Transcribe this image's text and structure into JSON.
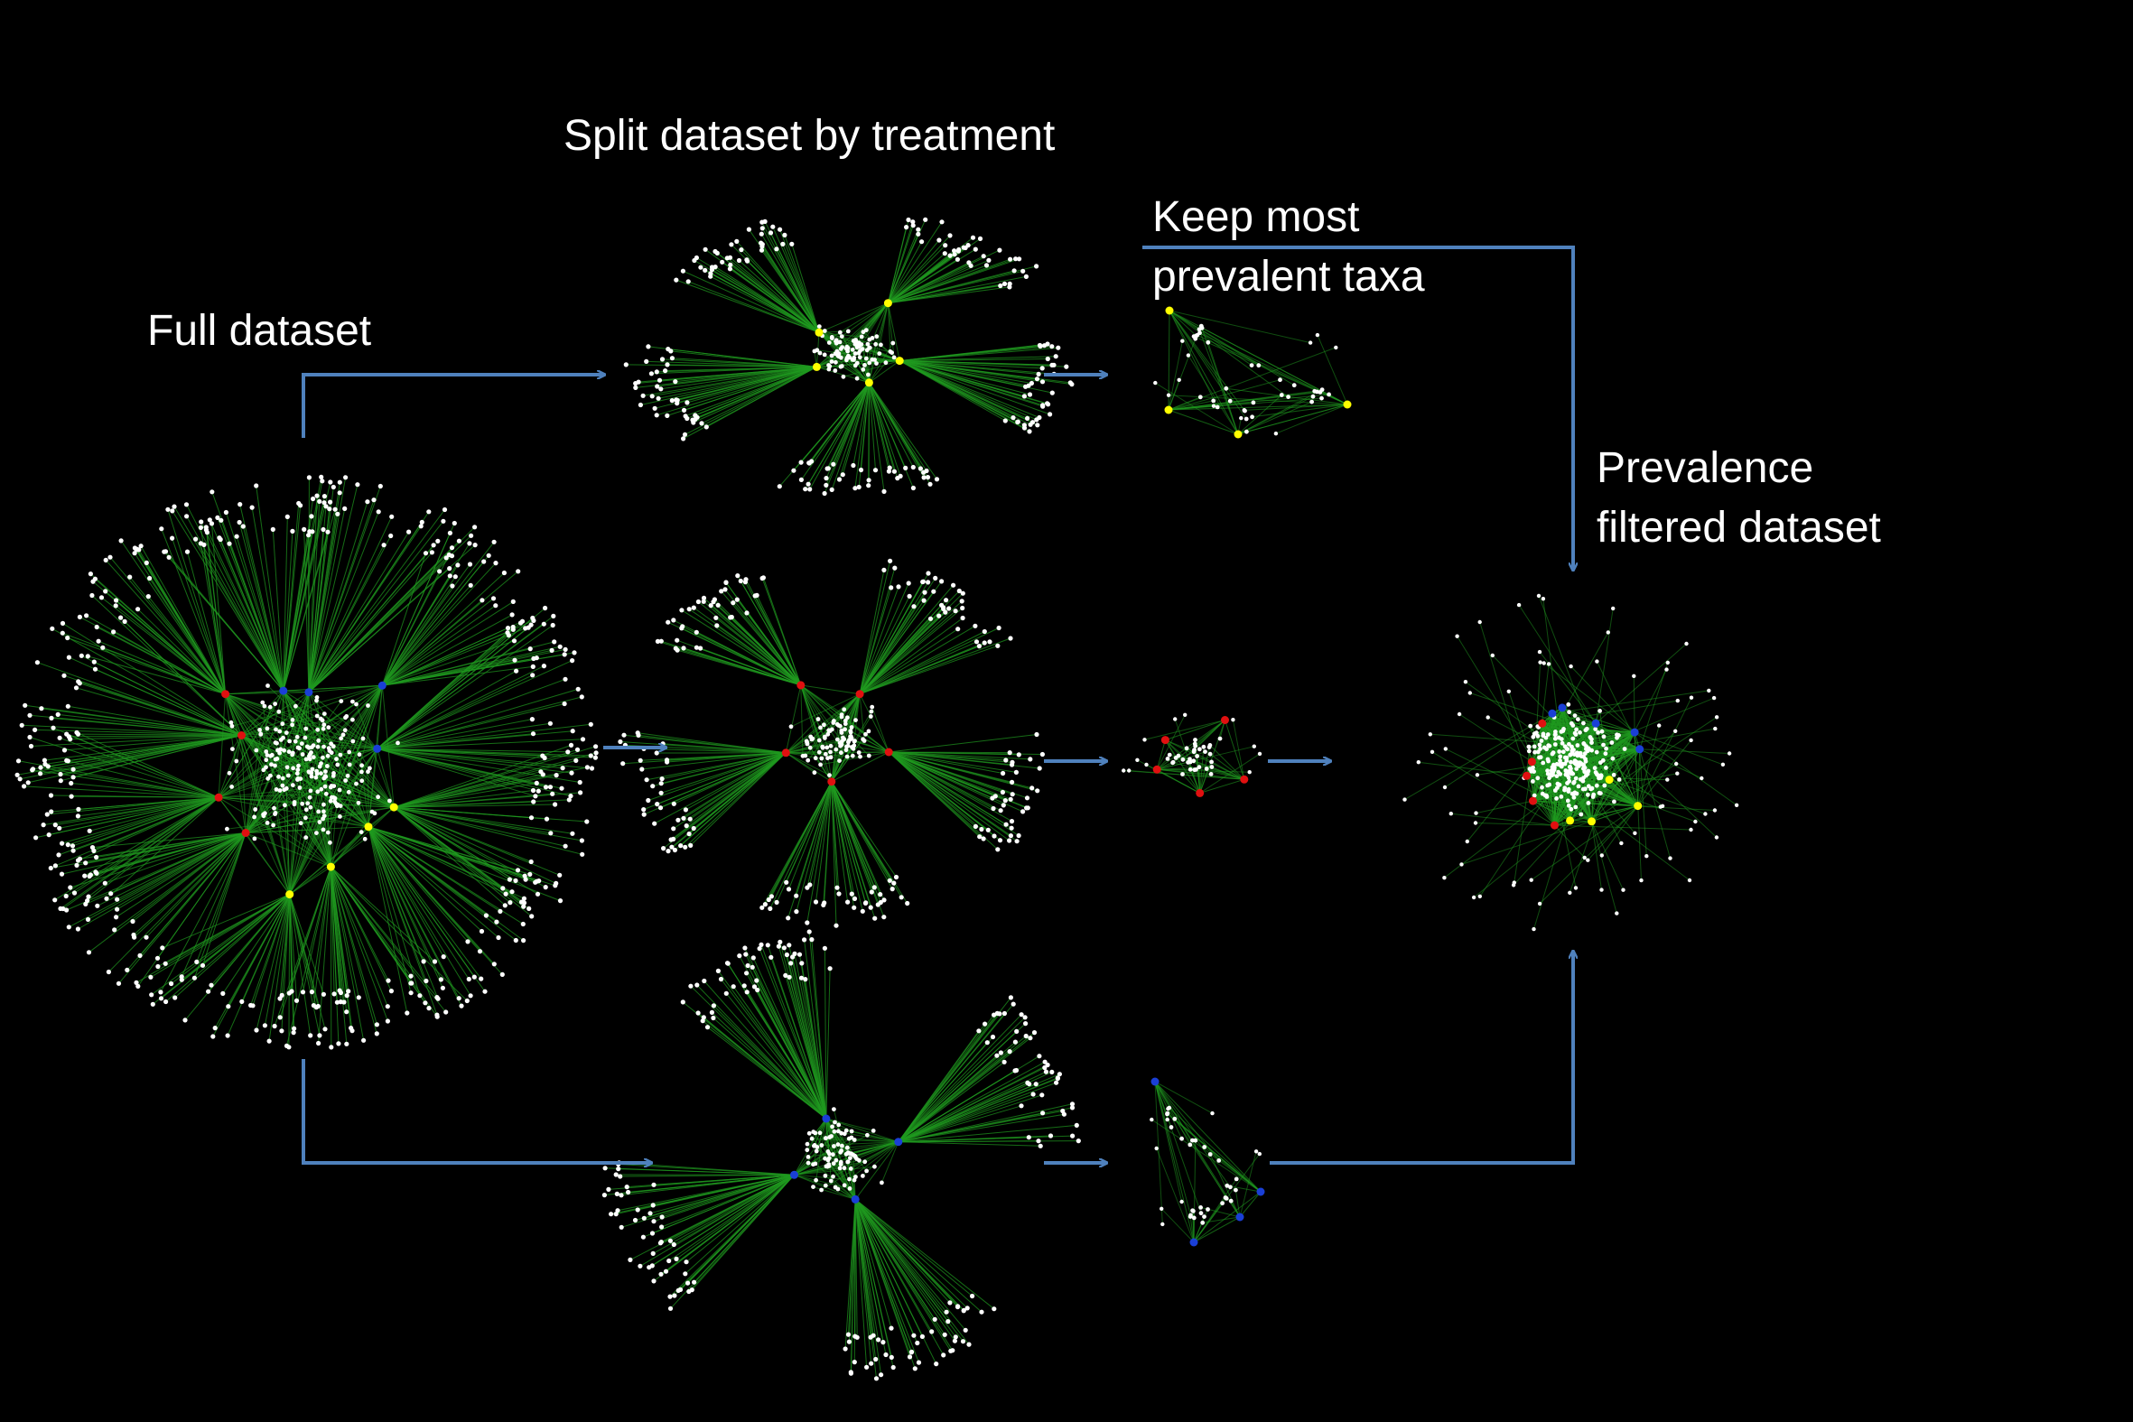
{
  "labels": {
    "full_dataset": "Full dataset",
    "split_by_treatment": "Split dataset by treatment",
    "keep_most_line1": "Keep most",
    "keep_most_line2": "prevalent taxa",
    "filtered_line1": "Prevalence",
    "filtered_line2": "filtered dataset"
  },
  "colors": {
    "background": "#000000",
    "text": "#ffffff",
    "arrow": "#4f81bd",
    "edge": "#1f9a1f",
    "node": "#ffffff",
    "hub_yellow": "#ffff00",
    "hub_red": "#e01010",
    "hub_blue": "#1a3fd6"
  },
  "networks": [
    {
      "id": "full-dataset-network",
      "nodes": 700,
      "hubs": {
        "yellow": 4,
        "red": 4,
        "blue": 4
      }
    },
    {
      "id": "treatment-1-network",
      "nodes": 300,
      "hubs": {
        "yellow": 5,
        "red": 0,
        "blue": 0
      }
    },
    {
      "id": "treatment-2-network",
      "nodes": 300,
      "hubs": {
        "yellow": 0,
        "red": 5,
        "blue": 0
      }
    },
    {
      "id": "treatment-3-network",
      "nodes": 300,
      "hubs": {
        "yellow": 0,
        "red": 0,
        "blue": 4
      }
    },
    {
      "id": "prevalent-1-network",
      "nodes": 45,
      "hubs": {
        "yellow": 4,
        "red": 0,
        "blue": 0
      }
    },
    {
      "id": "prevalent-2-network",
      "nodes": 45,
      "hubs": {
        "yellow": 0,
        "red": 5,
        "blue": 0
      }
    },
    {
      "id": "prevalent-3-network",
      "nodes": 40,
      "hubs": {
        "yellow": 0,
        "red": 0,
        "blue": 4
      }
    },
    {
      "id": "filtered-network",
      "nodes": 320,
      "hubs": {
        "yellow": 4,
        "red": 5,
        "blue": 5
      }
    }
  ]
}
